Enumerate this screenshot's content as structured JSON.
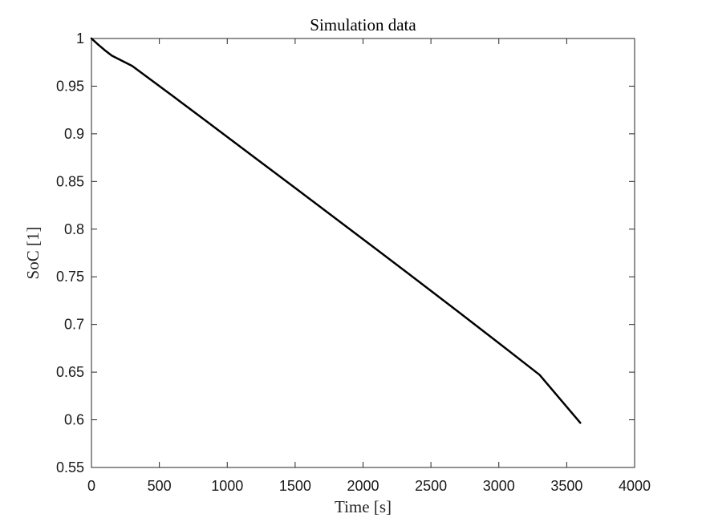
{
  "chart_data": {
    "type": "line",
    "title": "Simulation data",
    "xlabel": "Time [s]",
    "ylabel": "SoC [1]",
    "xlim": [
      0,
      4000
    ],
    "ylim": [
      0.55,
      1.0
    ],
    "xticks": [
      0,
      500,
      1000,
      1500,
      2000,
      2500,
      3000,
      3500,
      4000
    ],
    "xtick_labels": [
      "0",
      "500",
      "1000",
      "1500",
      "2000",
      "2500",
      "3000",
      "3500",
      "4000"
    ],
    "yticks": [
      0.55,
      0.6,
      0.65,
      0.7,
      0.75,
      0.8,
      0.85,
      0.9,
      0.95,
      1.0
    ],
    "ytick_labels": [
      "0.55",
      "0.6",
      "0.65",
      "0.7",
      "0.75",
      "0.8",
      "0.85",
      "0.9",
      "0.95",
      "1"
    ],
    "grid": false,
    "series": [
      {
        "color": "#000000",
        "x": [
          0,
          50,
          100,
          150,
          300,
          600,
          900,
          1200,
          1500,
          1800,
          2100,
          2400,
          2700,
          3000,
          3300,
          3600
        ],
        "y": [
          1.0,
          0.9935,
          0.9875,
          0.982,
          0.9712,
          0.9395,
          0.9075,
          0.8753,
          0.8432,
          0.811,
          0.7787,
          0.7462,
          0.7135,
          0.6805,
          0.6472,
          0.5968
        ]
      }
    ]
  }
}
